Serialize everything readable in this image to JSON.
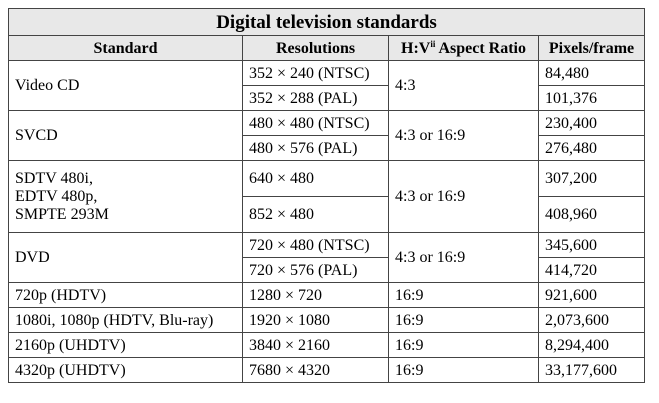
{
  "table": {
    "title": "Digital television standards",
    "headers": {
      "standard": "Standard",
      "resolutions": "Resolutions",
      "aspect_prefix": "H:V",
      "aspect_sup": "ii",
      "aspect_suffix": " Aspect Ratio",
      "pixels": "Pixels/frame"
    },
    "groups": [
      {
        "standard": "Video CD",
        "aspect": "4:3",
        "rows": [
          {
            "resolution": "352 × 240 (NTSC)",
            "pixels": "84,480"
          },
          {
            "resolution": "352 × 288 (PAL)",
            "pixels": "101,376"
          }
        ]
      },
      {
        "standard": "SVCD",
        "aspect": "4:3 or 16:9",
        "rows": [
          {
            "resolution": "480 × 480 (NTSC)",
            "pixels": "230,400"
          },
          {
            "resolution": "480 × 576 (PAL)",
            "pixels": "276,480"
          }
        ]
      },
      {
        "standard_lines": [
          "SDTV 480i,",
          "EDTV 480p,",
          "SMPTE 293M"
        ],
        "aspect": "4:3 or 16:9",
        "rows": [
          {
            "resolution": "640 × 480",
            "pixels": "307,200"
          },
          {
            "resolution": "852 × 480",
            "pixels": "408,960"
          }
        ]
      },
      {
        "standard": "DVD",
        "aspect": "4:3 or 16:9",
        "rows": [
          {
            "resolution": "720 × 480 (NTSC)",
            "pixels": "345,600"
          },
          {
            "resolution": "720 × 576 (PAL)",
            "pixels": "414,720"
          }
        ]
      }
    ],
    "singles": [
      {
        "standard": "720p (HDTV)",
        "resolution": "1280 × 720",
        "aspect": "16:9",
        "pixels": "921,600"
      },
      {
        "standard": "1080i, 1080p (HDTV, Blu-ray)",
        "resolution": "1920 × 1080",
        "aspect": "16:9",
        "pixels": "2,073,600"
      },
      {
        "standard": "2160p (UHDTV)",
        "resolution": "3840 × 2160",
        "aspect": "16:9",
        "pixels": "8,294,400"
      },
      {
        "standard": "4320p (UHDTV)",
        "resolution": "7680 × 4320",
        "aspect": "16:9",
        "pixels": "33,177,600"
      }
    ]
  }
}
